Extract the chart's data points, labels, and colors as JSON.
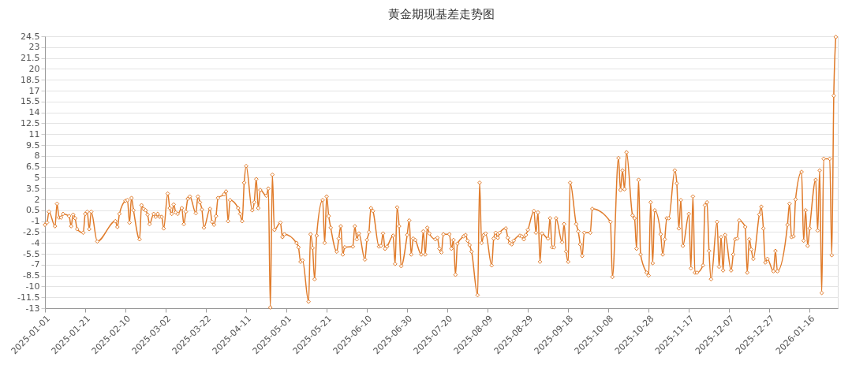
{
  "chart_data": {
    "type": "line",
    "title": "黄金期现基差走势图",
    "x": [
      "2025-01-01",
      "2025-01-02",
      "2025-01-03",
      "2025-01-06",
      "2025-01-07",
      "2025-01-08",
      "2025-01-09",
      "2025-01-10",
      "2025-01-13",
      "2025-01-14",
      "2025-01-15",
      "2025-01-16",
      "2025-01-17",
      "2025-01-20",
      "2025-01-21",
      "2025-01-22",
      "2025-01-23",
      "2025-01-24",
      "2025-01-27",
      "2025-02-05",
      "2025-02-06",
      "2025-02-07",
      "2025-02-10",
      "2025-02-11",
      "2025-02-12",
      "2025-02-13",
      "2025-02-14",
      "2025-02-17",
      "2025-02-18",
      "2025-02-19",
      "2025-02-20",
      "2025-02-21",
      "2025-02-22",
      "2025-02-24",
      "2025-02-25",
      "2025-02-26",
      "2025-02-27",
      "2025-02-28",
      "2025-03-01",
      "2025-03-03",
      "2025-03-04",
      "2025-03-05",
      "2025-03-06",
      "2025-03-07",
      "2025-03-08",
      "2025-03-10",
      "2025-03-11",
      "2025-03-12",
      "2025-03-13",
      "2025-03-14",
      "2025-03-17",
      "2025-03-18",
      "2025-03-19",
      "2025-03-20",
      "2025-03-21",
      "2025-03-24",
      "2025-03-25",
      "2025-03-26",
      "2025-03-27",
      "2025-03-28",
      "2025-03-31",
      "2025-04-01",
      "2025-04-02",
      "2025-04-03",
      "2025-04-07",
      "2025-04-08",
      "2025-04-09",
      "2025-04-10",
      "2025-04-11",
      "2025-04-14",
      "2025-04-15",
      "2025-04-16",
      "2025-04-17",
      "2025-04-18",
      "2025-04-21",
      "2025-04-22",
      "2025-04-23",
      "2025-04-24",
      "2025-04-25",
      "2025-04-28",
      "2025-04-29",
      "2025-04-30",
      "2025-05-06",
      "2025-05-07",
      "2025-05-08",
      "2025-05-09",
      "2025-05-12",
      "2025-05-13",
      "2025-05-14",
      "2025-05-15",
      "2025-05-16",
      "2025-05-19",
      "2025-05-20",
      "2025-05-21",
      "2025-05-22",
      "2025-05-23",
      "2025-05-26",
      "2025-05-27",
      "2025-05-28",
      "2025-05-29",
      "2025-05-30",
      "2025-06-03",
      "2025-06-04",
      "2025-06-05",
      "2025-06-06",
      "2025-06-09",
      "2025-06-10",
      "2025-06-11",
      "2025-06-12",
      "2025-06-13",
      "2025-06-16",
      "2025-06-17",
      "2025-06-18",
      "2025-06-19",
      "2025-06-20",
      "2025-06-23",
      "2025-06-24",
      "2025-06-25",
      "2025-06-26",
      "2025-06-27",
      "2025-06-30",
      "2025-07-01",
      "2025-07-02",
      "2025-07-03",
      "2025-07-04",
      "2025-07-07",
      "2025-07-08",
      "2025-07-09",
      "2025-07-10",
      "2025-07-11",
      "2025-07-14",
      "2025-07-15",
      "2025-07-16",
      "2025-07-17",
      "2025-07-18",
      "2025-07-21",
      "2025-07-22",
      "2025-07-23",
      "2025-07-24",
      "2025-07-25",
      "2025-07-28",
      "2025-07-29",
      "2025-07-30",
      "2025-07-31",
      "2025-08-01",
      "2025-08-04",
      "2025-08-05",
      "2025-08-06",
      "2025-08-07",
      "2025-08-08",
      "2025-08-11",
      "2025-08-12",
      "2025-08-13",
      "2025-08-14",
      "2025-08-15",
      "2025-08-18",
      "2025-08-19",
      "2025-08-20",
      "2025-08-21",
      "2025-08-22",
      "2025-08-25",
      "2025-08-26",
      "2025-08-27",
      "2025-08-28",
      "2025-08-29",
      "2025-09-01",
      "2025-09-02",
      "2025-09-03",
      "2025-09-04",
      "2025-09-05",
      "2025-09-08",
      "2025-09-09",
      "2025-09-10",
      "2025-09-11",
      "2025-09-12",
      "2025-09-15",
      "2025-09-16",
      "2025-09-17",
      "2025-09-18",
      "2025-09-19",
      "2025-09-22",
      "2025-09-23",
      "2025-09-24",
      "2025-09-25",
      "2025-09-26",
      "2025-09-29",
      "2025-09-30",
      "2025-10-09",
      "2025-10-10",
      "2025-10-13",
      "2025-10-14",
      "2025-10-15",
      "2025-10-16",
      "2025-10-17",
      "2025-10-20",
      "2025-10-21",
      "2025-10-22",
      "2025-10-23",
      "2025-10-24",
      "2025-10-27",
      "2025-10-28",
      "2025-10-29",
      "2025-10-30",
      "2025-10-31",
      "2025-11-03",
      "2025-11-04",
      "2025-11-05",
      "2025-11-06",
      "2025-11-07",
      "2025-11-10",
      "2025-11-11",
      "2025-11-12",
      "2025-11-13",
      "2025-11-14",
      "2025-11-17",
      "2025-11-18",
      "2025-11-19",
      "2025-11-20",
      "2025-11-21",
      "2025-11-24",
      "2025-11-25",
      "2025-11-26",
      "2025-11-27",
      "2025-11-28",
      "2025-12-01",
      "2025-12-02",
      "2025-12-03",
      "2025-12-04",
      "2025-12-05",
      "2025-12-08",
      "2025-12-09",
      "2025-12-10",
      "2025-12-11",
      "2025-12-12",
      "2025-12-15",
      "2025-12-16",
      "2025-12-17",
      "2025-12-18",
      "2025-12-19",
      "2025-12-22",
      "2025-12-23",
      "2025-12-24",
      "2025-12-25",
      "2025-12-26",
      "2025-12-29",
      "2025-12-30",
      "2025-12-31",
      "2026-01-05",
      "2026-01-06",
      "2026-01-07",
      "2026-01-08",
      "2026-01-09",
      "2026-01-12",
      "2026-01-13",
      "2026-01-14",
      "2026-01-15",
      "2026-01-16",
      "2026-01-19",
      "2026-01-20",
      "2026-01-21",
      "2026-01-22",
      "2026-01-23",
      "2026-01-26",
      "2026-01-27",
      "2026-01-28",
      "2026-01-29"
    ],
    "series": [
      {
        "color": "#e07b2a",
        "values": [
          -1.5,
          -1.2,
          0.3,
          -1.7,
          1.4,
          -0.5,
          -0.5,
          0.0,
          -0.3,
          -1.7,
          -0.1,
          -0.6,
          -2.1,
          -2.6,
          0.0,
          0.3,
          -2.1,
          0.3,
          -3.8,
          -1.0,
          -1.8,
          0.0,
          1.8,
          1.9,
          -1.2,
          2.2,
          0.5,
          -3.5,
          1.2,
          0.7,
          0.5,
          -0.1,
          -1.4,
          0.0,
          -0.4,
          0.0,
          -0.4,
          -0.4,
          -2.0,
          2.8,
          0.8,
          0.0,
          1.3,
          0.2,
          0.0,
          0.8,
          -1.4,
          0.3,
          2.1,
          2.4,
          0.1,
          2.4,
          1.6,
          0.6,
          -1.9,
          0.7,
          -1.1,
          -1.5,
          -0.3,
          2.2,
          2.7,
          3.1,
          -1.0,
          1.9,
          0.8,
          0.0,
          -1.0,
          4.3,
          6.6,
          0.5,
          1.6,
          4.8,
          0.8,
          3.3,
          2.5,
          3.5,
          -12.9,
          5.4,
          -2.2,
          -1.2,
          -3.2,
          -2.8,
          -4.0,
          -4.6,
          -6.6,
          -6.4,
          -12.1,
          -2.8,
          -4.7,
          -9.0,
          -3.0,
          1.9,
          -4.0,
          2.4,
          -0.3,
          -1.9,
          -5.2,
          -3.4,
          -1.7,
          -5.6,
          -4.6,
          -4.5,
          -1.7,
          -3.5,
          -2.7,
          -6.3,
          -3.6,
          -2.5,
          0.8,
          0.4,
          -4.5,
          -4.4,
          -2.7,
          -4.8,
          -4.5,
          -3.0,
          -6.9,
          0.9,
          -1.7,
          -7.2,
          -2.9,
          -0.9,
          -5.6,
          -3.4,
          -3.6,
          -5.6,
          -2.4,
          -5.6,
          -1.9,
          -2.7,
          -3.5,
          -3.3,
          -4.8,
          -5.3,
          -2.8,
          -2.8,
          -4.8,
          -3.6,
          -8.4,
          -4.1,
          -3.1,
          -2.9,
          -3.7,
          -4.3,
          -5.2,
          -11.2,
          4.3,
          -4.0,
          -2.9,
          -2.7,
          -7.1,
          -3.4,
          -2.6,
          -3.3,
          -2.6,
          -2.0,
          -3.3,
          -4.0,
          -4.2,
          -3.7,
          -3.0,
          -3.1,
          -3.5,
          -2.9,
          -2.2,
          0.4,
          -2.6,
          0.2,
          -6.6,
          -2.7,
          -3.4,
          -0.6,
          -4.6,
          -4.6,
          -0.6,
          -3.9,
          -1.4,
          -5.2,
          -6.6,
          4.3,
          -1.4,
          -2.4,
          -4.2,
          -5.8,
          -2.6,
          -2.6,
          0.7,
          -1.1,
          -8.7,
          7.7,
          3.3,
          6.0,
          3.4,
          8.5,
          -0.2,
          -0.6,
          -4.8,
          4.7,
          -5.6,
          -8.1,
          -8.5,
          1.6,
          -6.8,
          0.5,
          -2.8,
          -5.6,
          -3.5,
          -0.6,
          -0.6,
          6.0,
          4.2,
          -2.0,
          1.9,
          -4.4,
          0.0,
          -7.5,
          2.4,
          -8.1,
          -8.1,
          -7.1,
          1.2,
          1.6,
          -5.1,
          -9.0,
          -1.1,
          -7.3,
          -3.2,
          -7.8,
          -2.9,
          -7.8,
          -5.6,
          -3.5,
          -3.4,
          -0.9,
          -1.8,
          -8.1,
          -3.5,
          -4.9,
          -6.2,
          -0.1,
          1.0,
          -2.0,
          -6.7,
          -6.2,
          -7.9,
          -5.1,
          -7.9,
          -1.5,
          1.4,
          -3.2,
          -3.1,
          2.0,
          5.8,
          -3.7,
          0.5,
          -4.4,
          -2.0,
          4.7,
          -2.3,
          6.0,
          -10.9,
          7.6,
          7.6,
          -5.7,
          16.3,
          24.4
        ]
      }
    ],
    "xlim": [
      "2025-01-01",
      "2026-01-30"
    ],
    "xticks": [
      "2025-01-01",
      "2025-01-21",
      "2025-02-10",
      "2025-03-02",
      "2025-03-22",
      "2025-04-11",
      "2025-05-01",
      "2025-05-21",
      "2025-06-10",
      "2025-06-30",
      "2025-07-20",
      "2025-08-09",
      "2025-08-29",
      "2025-09-18",
      "2025-10-08",
      "2025-10-28",
      "2025-11-17",
      "2025-12-07",
      "2025-12-27",
      "2026-01-16"
    ],
    "ylim": [
      -13,
      24.5
    ],
    "yticks": [
      -13,
      -11.5,
      -10,
      -8.5,
      -7,
      -5.5,
      -4,
      -2.5,
      -1,
      0.5,
      2,
      3.5,
      5,
      6.5,
      8,
      9.5,
      11,
      12.5,
      14,
      15.5,
      17,
      18.5,
      20,
      21.5,
      23,
      24.5
    ],
    "grid": "y",
    "marker": "diamond"
  }
}
